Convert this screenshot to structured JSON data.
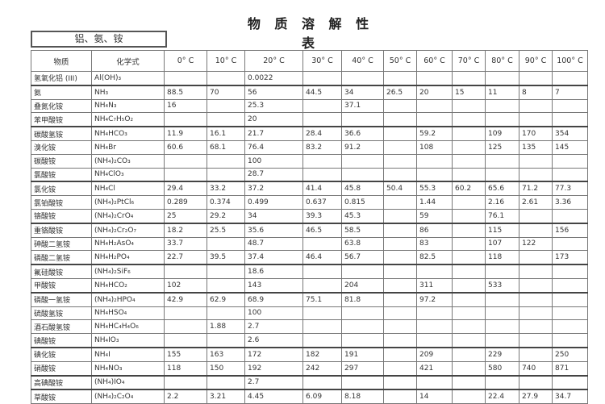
{
  "title": "物 质 溶 解 性 表",
  "group_label": "铝、氨、铵",
  "headers": [
    "物质",
    "化学式",
    "0° C",
    "10° C",
    "20° C",
    "30° C",
    "40° C",
    "50° C",
    "60° C",
    "70° C",
    "80° C",
    "90° C",
    "100° C"
  ],
  "rows": [
    {
      "name": "氢氧化铝 (III)",
      "formula": "Al(OH)₃",
      "values": [
        "",
        "",
        "0.0022",
        "",
        "",
        "",
        "",
        "",
        "",
        "",
        ""
      ]
    },
    {
      "name": "氨",
      "formula": "NH₃",
      "values": [
        "88.5",
        "70",
        "56",
        "44.5",
        "34",
        "26.5",
        "20",
        "15",
        "11",
        "8",
        "7"
      ]
    },
    {
      "name": "叠氮化铵",
      "formula": "NH₄N₃",
      "values": [
        "16",
        "",
        "25.3",
        "",
        "37.1",
        "",
        "",
        "",
        "",
        "",
        ""
      ]
    },
    {
      "name": "苯甲酸铵",
      "formula": "NH₄C₇H₅O₂",
      "values": [
        "",
        "",
        "20",
        "",
        "",
        "",
        "",
        "",
        "",
        "",
        ""
      ]
    },
    {
      "name": "碳酸氢铵",
      "formula": "NH₄HCO₃",
      "values": [
        "11.9",
        "16.1",
        "21.7",
        "28.4",
        "36.6",
        "",
        "59.2",
        "",
        "109",
        "170",
        "354"
      ]
    },
    {
      "name": "溴化铵",
      "formula": "NH₄Br",
      "values": [
        "60.6",
        "68.1",
        "76.4",
        "83.2",
        "91.2",
        "",
        "108",
        "",
        "125",
        "135",
        "145"
      ]
    },
    {
      "name": "碳酸铵",
      "formula": "(NH₄)₂CO₃",
      "values": [
        "",
        "",
        "100",
        "",
        "",
        "",
        "",
        "",
        "",
        "",
        ""
      ]
    },
    {
      "name": "氯酸铵",
      "formula": "NH₄ClO₃",
      "values": [
        "",
        "",
        "28.7",
        "",
        "",
        "",
        "",
        "",
        "",
        "",
        ""
      ]
    },
    {
      "name": "氯化铵",
      "formula": "NH₄Cl",
      "values": [
        "29.4",
        "33.2",
        "37.2",
        "41.4",
        "45.8",
        "50.4",
        "55.3",
        "60.2",
        "65.6",
        "71.2",
        "77.3"
      ]
    },
    {
      "name": "氯铂酸铵",
      "formula": "(NH₄)₂PtCl₆",
      "values": [
        "0.289",
        "0.374",
        "0.499",
        "0.637",
        "0.815",
        "",
        "1.44",
        "",
        "2.16",
        "2.61",
        "3.36"
      ]
    },
    {
      "name": "铬酸铵",
      "formula": "(NH₄)₂CrO₄",
      "values": [
        "25",
        "29.2",
        "34",
        "39.3",
        "45.3",
        "",
        "59",
        "",
        "76.1",
        "",
        ""
      ]
    },
    {
      "name": "重铬酸铵",
      "formula": "(NH₄)₂Cr₂O₇",
      "values": [
        "18.2",
        "25.5",
        "35.6",
        "46.5",
        "58.5",
        "",
        "86",
        "",
        "115",
        "",
        "156"
      ]
    },
    {
      "name": "砷酸二氢铵",
      "formula": "NH₄H₂AsO₄",
      "values": [
        "33.7",
        "",
        "48.7",
        "",
        "63.8",
        "",
        "83",
        "",
        "107",
        "122",
        ""
      ]
    },
    {
      "name": "磷酸二氢铵",
      "formula": "NH₄H₂PO₄",
      "values": [
        "22.7",
        "39.5",
        "37.4",
        "46.4",
        "56.7",
        "",
        "82.5",
        "",
        "118",
        "",
        "173"
      ]
    },
    {
      "name": "氟硅酸铵",
      "formula": "(NH₄)₂SiF₆",
      "values": [
        "",
        "",
        "18.6",
        "",
        "",
        "",
        "",
        "",
        "",
        "",
        ""
      ]
    },
    {
      "name": "甲酸铵",
      "formula": "NH₄HCO₂",
      "values": [
        "102",
        "",
        "143",
        "",
        "204",
        "",
        "311",
        "",
        "533",
        "",
        ""
      ]
    },
    {
      "name": "磷酸一氢铵",
      "formula": "(NH₄)₂HPO₄",
      "values": [
        "42.9",
        "62.9",
        "68.9",
        "75.1",
        "81.8",
        "",
        "97.2",
        "",
        "",
        "",
        ""
      ]
    },
    {
      "name": "硫酸氢铵",
      "formula": "NH₄HSO₄",
      "values": [
        "",
        "",
        "100",
        "",
        "",
        "",
        "",
        "",
        "",
        "",
        ""
      ]
    },
    {
      "name": "酒石酸氢铵",
      "formula": "NH₄HC₄H₄O₆",
      "values": [
        "",
        "1.88",
        "2.7",
        "",
        "",
        "",
        "",
        "",
        "",
        "",
        ""
      ]
    },
    {
      "name": "碘酸铵",
      "formula": "NH₄IO₃",
      "values": [
        "",
        "",
        "2.6",
        "",
        "",
        "",
        "",
        "",
        "",
        "",
        ""
      ]
    },
    {
      "name": "碘化铵",
      "formula": "NH₄I",
      "values": [
        "155",
        "163",
        "172",
        "182",
        "191",
        "",
        "209",
        "",
        "229",
        "",
        "250"
      ]
    },
    {
      "name": "硝酸铵",
      "formula": "NH₄NO₃",
      "values": [
        "118",
        "150",
        "192",
        "242",
        "297",
        "",
        "421",
        "",
        "580",
        "740",
        "871"
      ]
    },
    {
      "name": "高碘酸铵",
      "formula": "(NH₄)IO₄",
      "values": [
        "",
        "",
        "2.7",
        "",
        "",
        "",
        "",
        "",
        "",
        "",
        ""
      ]
    },
    {
      "name": "草酸铵",
      "formula": "(NH₄)₂C₂O₄",
      "values": [
        "2.2",
        "3.21",
        "4.45",
        "6.09",
        "8.18",
        "",
        "14",
        "",
        "22.4",
        "27.9",
        "34.7"
      ]
    }
  ]
}
